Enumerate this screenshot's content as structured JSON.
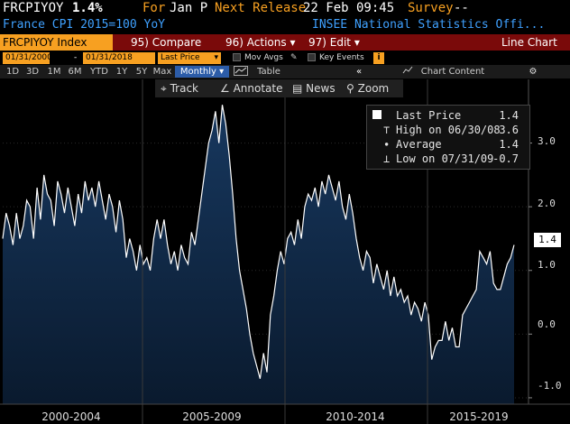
{
  "header": {
    "ticker": "FRCPIYOY",
    "value": "1.4%",
    "for_label": "For",
    "period": "Jan P",
    "next_release_label": "Next Release",
    "next_release": "22 Feb 09:45",
    "survey_label": "Survey",
    "survey_value": "--",
    "description": "France CPI 2015=100 YoY",
    "source": "INSEE National Statistics Offi..."
  },
  "menubar": {
    "index": "FRCPIYOY Index",
    "compare": "95) Compare",
    "actions": "96) Actions",
    "edit": "97) Edit",
    "chart_type": "Line Chart"
  },
  "range": {
    "start": "01/31/2000",
    "sep": "-",
    "end": "01/31/2018",
    "field": "Last Price",
    "mov_avgs": "Mov Avgs",
    "key_events": "Key Events"
  },
  "periods": [
    "1D",
    "3D",
    "1M",
    "6M",
    "YTD",
    "1Y",
    "5Y",
    "Max"
  ],
  "frequency": "Monthly",
  "table_label": "Table",
  "chart_content_label": "Chart Content",
  "tools": {
    "track": "Track",
    "annotate": "Annotate",
    "news": "News",
    "zoom": "Zoom"
  },
  "legend": {
    "last_price_label": "Last Price",
    "last_price": "1.4",
    "high_label": "High on 06/30/08",
    "high": "3.6",
    "average_label": "Average",
    "average": "1.4",
    "low_label": "Low on 07/31/09",
    "low": "-0.7"
  },
  "last_value_tag": "1.4",
  "colors": {
    "amber": "#f7a021",
    "blue": "#3fa1ff",
    "menu_red": "#7a0a0a",
    "fill": "#0f2a4a"
  },
  "chart_data": {
    "type": "area",
    "ylim": [
      -1.1,
      4.0
    ],
    "yticks": [
      "3.0",
      "2.0",
      "1.0",
      "0.0",
      "-1.0"
    ],
    "ytick_values": [
      3.0,
      2.0,
      1.0,
      0.0,
      -1.0
    ],
    "xlabels": [
      "2000-2004",
      "2005-2009",
      "2010-2014",
      "2015-2019"
    ],
    "grid": true,
    "series": [
      {
        "values": [
          1.5,
          1.9,
          1.7,
          1.4,
          1.9,
          1.5,
          1.7,
          2.1,
          2.0,
          1.5,
          2.3,
          1.8,
          2.5,
          2.2,
          2.1,
          1.7,
          2.4,
          2.2,
          1.9,
          2.3,
          2.0,
          1.7,
          2.2,
          1.9,
          2.4,
          2.1,
          2.3,
          2.0,
          2.4,
          2.1,
          1.8,
          2.2,
          2.0,
          1.6,
          2.1,
          1.8,
          1.2,
          1.5,
          1.3,
          1.0,
          1.4,
          1.1,
          1.2,
          1.0,
          1.5,
          1.8,
          1.5,
          1.8,
          1.4,
          1.1,
          1.3,
          1.0,
          1.4,
          1.2,
          1.1,
          1.6,
          1.4,
          1.8,
          2.2,
          2.6,
          3.0,
          3.2,
          3.5,
          3.0,
          3.6,
          3.3,
          2.8,
          2.2,
          1.5,
          1.0,
          0.7,
          0.4,
          0.0,
          -0.3,
          -0.5,
          -0.7,
          -0.3,
          -0.6,
          0.3,
          0.6,
          1.0,
          1.3,
          1.1,
          1.5,
          1.6,
          1.4,
          1.8,
          1.5,
          2.0,
          2.2,
          2.1,
          2.3,
          2.0,
          2.4,
          2.2,
          2.5,
          2.3,
          2.1,
          2.4,
          2.0,
          1.8,
          2.2,
          1.9,
          1.5,
          1.2,
          1.0,
          1.3,
          1.2,
          0.8,
          1.1,
          0.9,
          0.7,
          1.0,
          0.6,
          0.9,
          0.6,
          0.7,
          0.5,
          0.6,
          0.3,
          0.5,
          0.4,
          0.2,
          0.5,
          0.3,
          -0.4,
          -0.2,
          -0.1,
          -0.1,
          0.2,
          -0.1,
          0.1,
          -0.2,
          -0.2,
          0.3,
          0.4,
          0.5,
          0.6,
          0.7,
          1.3,
          1.2,
          1.1,
          1.3,
          0.8,
          0.7,
          0.7,
          0.9,
          1.1,
          1.2,
          1.4
        ]
      }
    ]
  }
}
